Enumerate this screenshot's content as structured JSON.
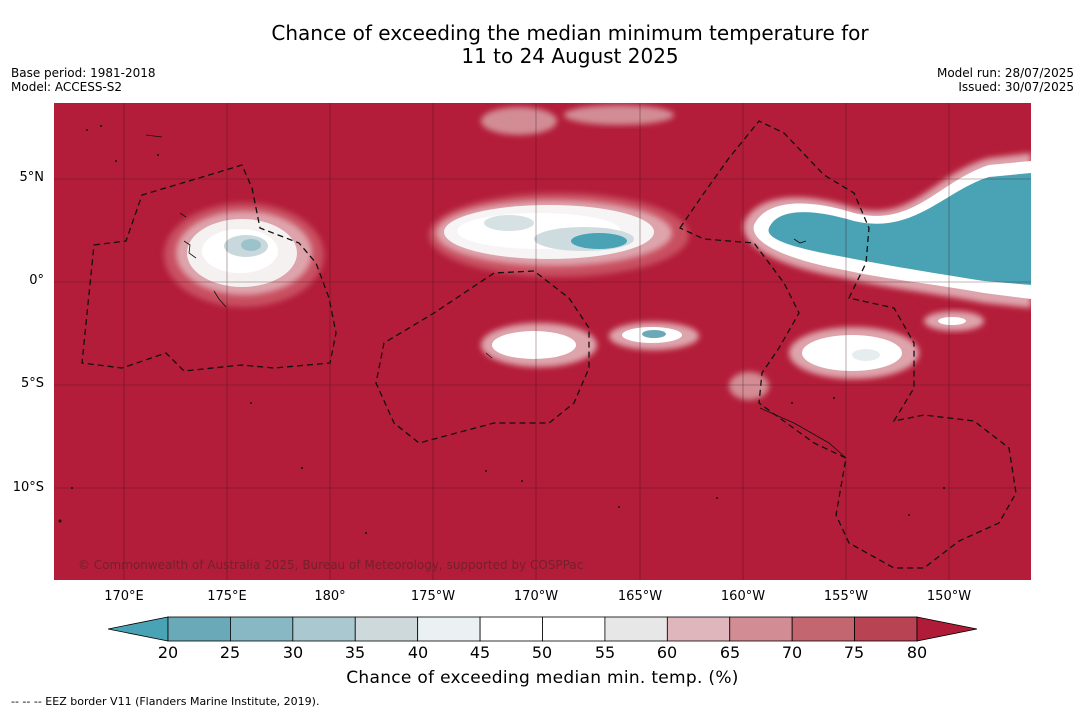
{
  "title_line1": "Chance of exceeding the median minimum temperature for",
  "title_line2": "11 to 24 August 2025",
  "meta_left": {
    "base_period": "Base period: 1981-2018",
    "model": "Model: ACCESS-S2"
  },
  "meta_right": {
    "model_run": "Model run: 28/07/2025",
    "issued": "Issued: 30/07/2025"
  },
  "lat_labels": [
    "5°N",
    "0°",
    "5°S",
    "10°S"
  ],
  "lon_labels": [
    "170°E",
    "175°E",
    "180°",
    "175°W",
    "170°W",
    "165°W",
    "160°W",
    "155°W",
    "150°W"
  ],
  "copyright": "© Commonwealth of Australia 2025, Bureau of Meteorology, supported by COSPPac",
  "colorbar": {
    "ticks": [
      "20",
      "25",
      "30",
      "35",
      "40",
      "45",
      "50",
      "55",
      "60",
      "65",
      "70",
      "75",
      "80"
    ],
    "colors": [
      "#6aa9b7",
      "#88b8c4",
      "#a9c8cf",
      "#ced9dc",
      "#ebf0f2",
      "#ffffff",
      "#ffffff",
      "#e7e7e8",
      "#dfb6bb",
      "#d28c94",
      "#c46670",
      "#b84352"
    ],
    "low_color": "#4aa3b5",
    "high_color": "#b01c38",
    "label": "Chance of exceeding median min. temp. (%)"
  },
  "footnote": "--  --  -- EEZ border V11 (Flanders Marine Institute, 2019).",
  "map_colors": {
    "background": "#b31d39",
    "gridline": "#3a1016",
    "border": "#111111"
  }
}
